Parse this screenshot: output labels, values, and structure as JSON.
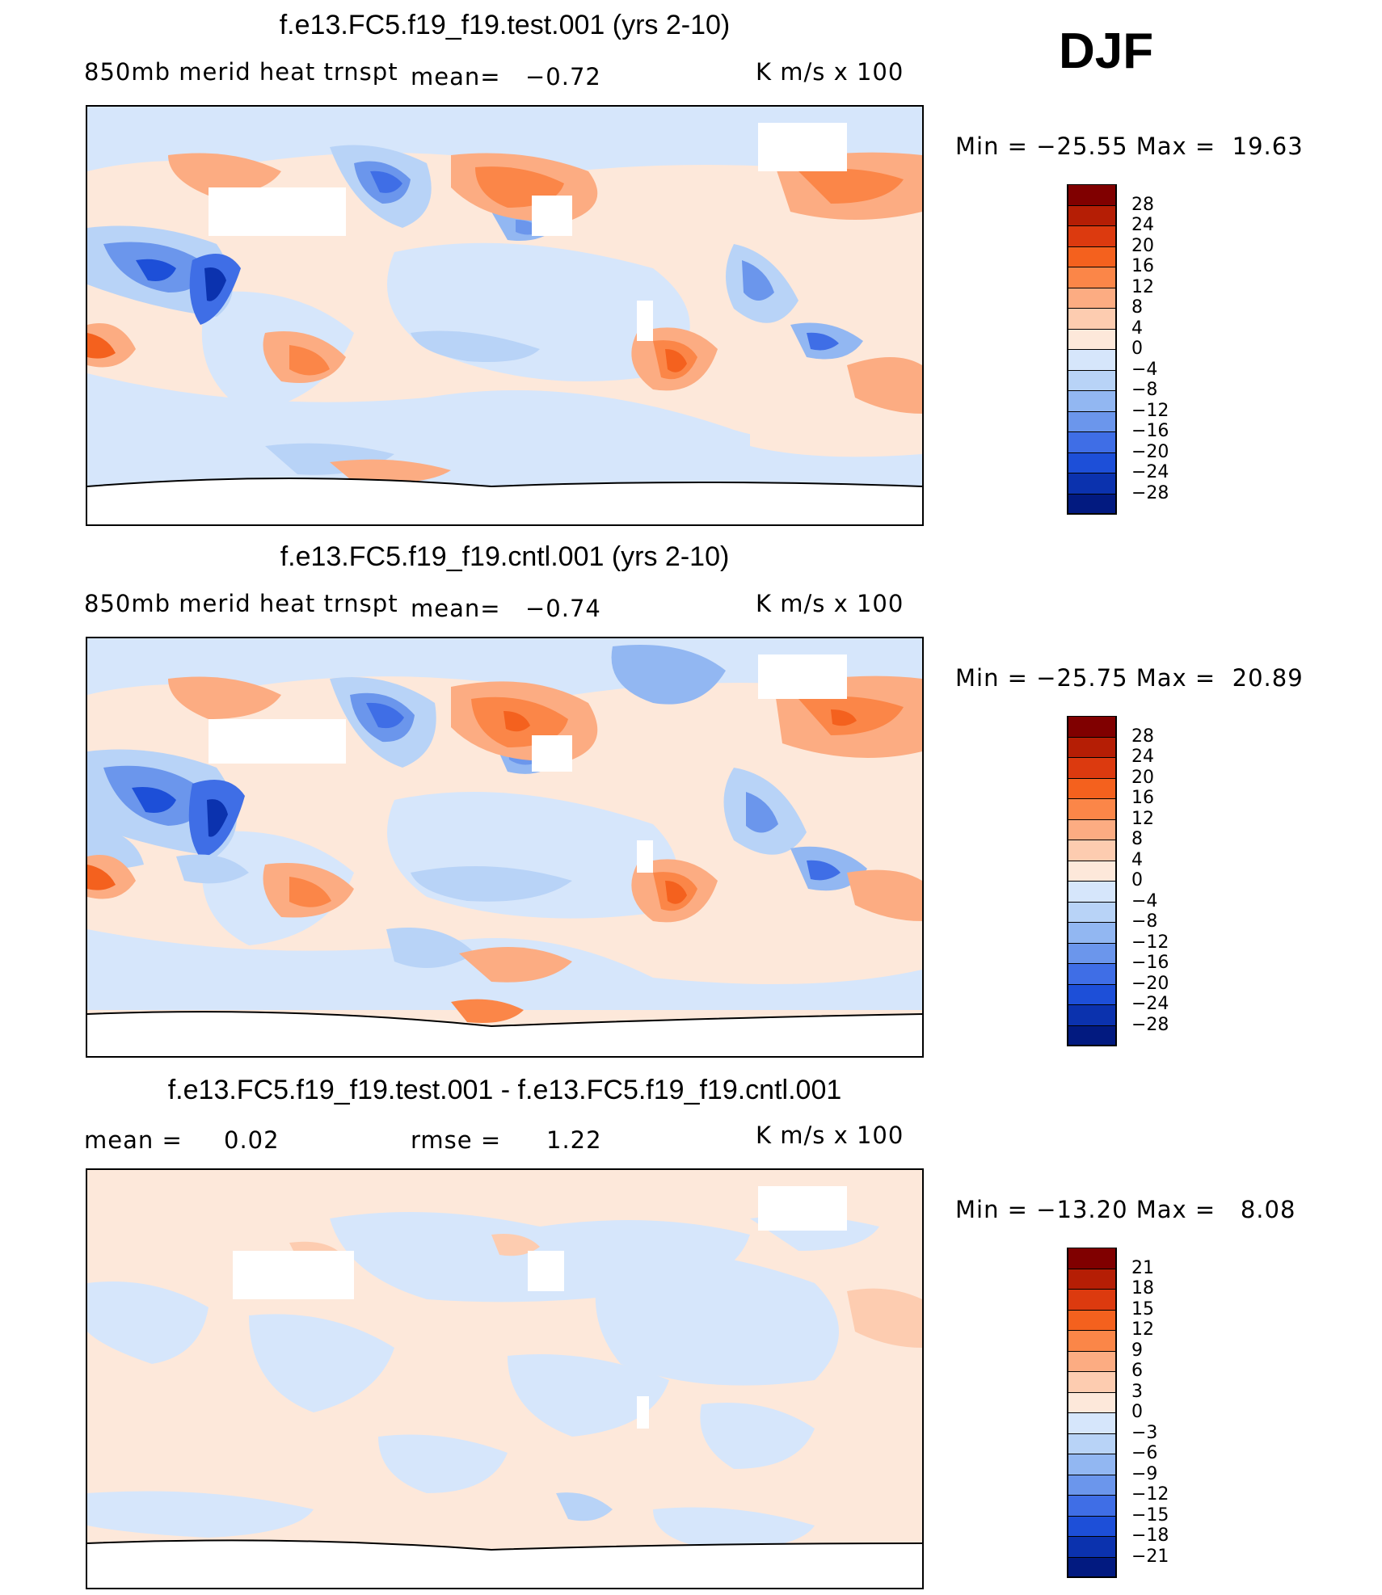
{
  "header": {
    "season": "DJF"
  },
  "panels": [
    {
      "title": "f.e13.FC5.f19_f19.test.001 (yrs 2-10)",
      "left_label": "850mb merid heat trnspt",
      "mean_text": "mean=",
      "mean_value": "−0.72",
      "units": "K m/s x 100",
      "min_max": "Min = −25.55 Max =  19.63",
      "colorbar_levels": [
        "28",
        "24",
        "20",
        "16",
        "12",
        "8",
        "4",
        "0",
        "−4",
        "−8",
        "−12",
        "−16",
        "−20",
        "−24",
        "−28"
      ]
    },
    {
      "title": "f.e13.FC5.f19_f19.cntl.001 (yrs 2-10)",
      "left_label": "850mb merid heat trnspt",
      "mean_text": "mean=",
      "mean_value": "−0.74",
      "units": "K m/s x 100",
      "min_max": "Min = −25.75 Max =  20.89",
      "colorbar_levels": [
        "28",
        "24",
        "20",
        "16",
        "12",
        "8",
        "4",
        "0",
        "−4",
        "−8",
        "−12",
        "−16",
        "−20",
        "−24",
        "−28"
      ]
    },
    {
      "title": "f.e13.FC5.f19_f19.test.001 - f.e13.FC5.f19_f19.cntl.001",
      "mean_label": "mean =",
      "mean_value": "0.02",
      "rmse_label": "rmse =",
      "rmse_value": "1.22",
      "units": "K m/s x 100",
      "min_max": "Min = −13.20 Max =   8.08",
      "colorbar_levels": [
        "21",
        "18",
        "15",
        "12",
        "9",
        "6",
        "3",
        "0",
        "−3",
        "−6",
        "−9",
        "−12",
        "−15",
        "−18",
        "−21"
      ]
    }
  ],
  "colors": {
    "scale": [
      "#800000",
      "#b51e05",
      "#dc3a0f",
      "#f4611e",
      "#fb8648",
      "#fcac82",
      "#fdccb0",
      "#fde8da",
      "#d6e6fb",
      "#b8d3f7",
      "#92b7f2",
      "#6b96ec",
      "#3f6ee6",
      "#1d4fd8",
      "#0b32ae",
      "#021a80"
    ]
  },
  "chart_data": [
    {
      "type": "heatmap",
      "title": "f.e13.FC5.f19_f19.test.001 (yrs 2-10)",
      "variable": "850mb merid heat trnspt",
      "units": "K m/s x 100",
      "mean": -0.72,
      "min": -25.55,
      "max": 19.63,
      "levels": [
        -28,
        -24,
        -20,
        -16,
        -12,
        -8,
        -4,
        0,
        4,
        8,
        12,
        16,
        20,
        24,
        28
      ]
    },
    {
      "type": "heatmap",
      "title": "f.e13.FC5.f19_f19.cntl.001 (yrs 2-10)",
      "variable": "850mb merid heat trnspt",
      "units": "K m/s x 100",
      "mean": -0.74,
      "min": -25.75,
      "max": 20.89,
      "levels": [
        -28,
        -24,
        -20,
        -16,
        -12,
        -8,
        -4,
        0,
        4,
        8,
        12,
        16,
        20,
        24,
        28
      ]
    },
    {
      "type": "heatmap",
      "title": "f.e13.FC5.f19_f19.test.001 - f.e13.FC5.f19_f19.cntl.001",
      "units": "K m/s x 100",
      "mean": 0.02,
      "rmse": 1.22,
      "min": -13.2,
      "max": 8.08,
      "levels": [
        -21,
        -18,
        -15,
        -12,
        -9,
        -6,
        -3,
        0,
        3,
        6,
        9,
        12,
        15,
        18,
        21
      ]
    }
  ]
}
